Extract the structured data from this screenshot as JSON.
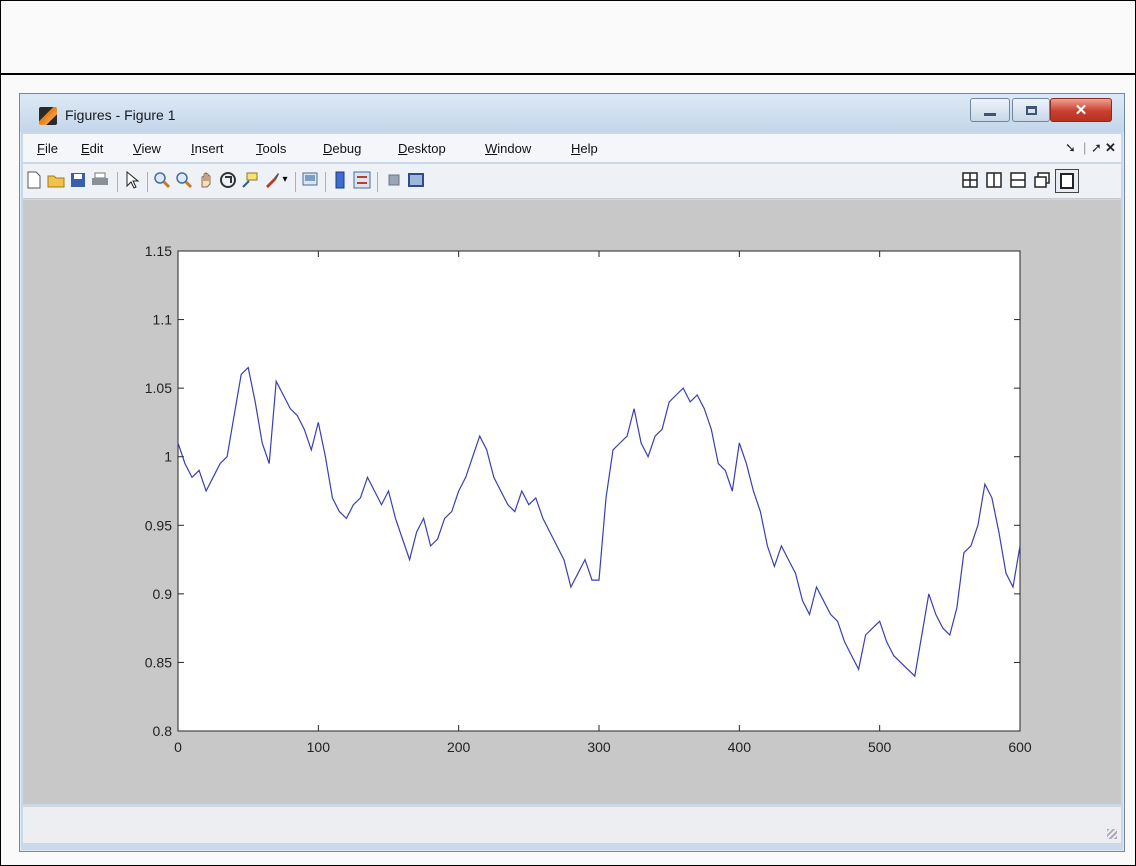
{
  "window": {
    "title": "Figures - Figure 1",
    "menu": [
      "File",
      "Edit",
      "View",
      "Insert",
      "Tools",
      "Debug",
      "Desktop",
      "Window",
      "Help"
    ]
  },
  "toolbar": {
    "icons": [
      "new-figure-icon",
      "open-file-icon",
      "save-icon",
      "print-icon",
      "edit-plot-icon",
      "zoom-in-icon",
      "zoom-out-icon",
      "pan-icon",
      "rotate-3d-icon",
      "data-cursor-icon",
      "brush-icon",
      "link-plot-icon",
      "colorbar-icon",
      "legend-icon",
      "hide-plot-tools-icon",
      "show-plot-tools-icon"
    ],
    "layout_icons": [
      "tile-icon",
      "left-right-icon",
      "top-bottom-icon",
      "float-icon",
      "maximize-icon"
    ]
  },
  "colors": {
    "line": "#3a3fb0",
    "figure_bg": "#c8c8c8",
    "axes_bg": "#ffffff"
  },
  "chart_data": {
    "type": "line",
    "xlim": [
      0,
      600
    ],
    "ylim": [
      0.8,
      1.15
    ],
    "xticks": [
      "0",
      "100",
      "200",
      "300",
      "400",
      "500",
      "600"
    ],
    "yticks": [
      "0.8",
      "0.85",
      "0.9",
      "0.95",
      "1",
      "1.05",
      "1.1",
      "1.15"
    ],
    "x": [
      0,
      5,
      10,
      15,
      20,
      25,
      30,
      35,
      40,
      45,
      50,
      55,
      60,
      65,
      70,
      75,
      80,
      85,
      90,
      95,
      100,
      105,
      110,
      115,
      120,
      125,
      130,
      135,
      140,
      145,
      150,
      155,
      160,
      165,
      170,
      175,
      180,
      185,
      190,
      195,
      200,
      205,
      210,
      215,
      220,
      225,
      230,
      235,
      240,
      245,
      250,
      255,
      260,
      265,
      270,
      275,
      280,
      285,
      290,
      295,
      300,
      305,
      310,
      315,
      320,
      325,
      330,
      335,
      340,
      345,
      350,
      355,
      360,
      365,
      370,
      375,
      380,
      385,
      390,
      395,
      400,
      405,
      410,
      415,
      420,
      425,
      430,
      435,
      440,
      445,
      450,
      455,
      460,
      465,
      470,
      475,
      480,
      485,
      490,
      495,
      500,
      505,
      510,
      515,
      520,
      525,
      530,
      535,
      540,
      545,
      550,
      555,
      560,
      565,
      570,
      575,
      580,
      585,
      590,
      595,
      600
    ],
    "y": [
      1.01,
      0.995,
      0.985,
      0.99,
      0.975,
      0.985,
      0.995,
      1.0,
      1.03,
      1.06,
      1.065,
      1.04,
      1.01,
      0.995,
      1.055,
      1.045,
      1.035,
      1.03,
      1.02,
      1.005,
      1.025,
      1.0,
      0.97,
      0.96,
      0.955,
      0.965,
      0.97,
      0.985,
      0.975,
      0.965,
      0.975,
      0.955,
      0.94,
      0.925,
      0.945,
      0.955,
      0.935,
      0.94,
      0.955,
      0.96,
      0.975,
      0.985,
      1.0,
      1.015,
      1.005,
      0.985,
      0.975,
      0.965,
      0.96,
      0.975,
      0.965,
      0.97,
      0.955,
      0.945,
      0.935,
      0.925,
      0.905,
      0.915,
      0.925,
      0.91,
      0.91,
      0.97,
      1.005,
      1.01,
      1.015,
      1.035,
      1.01,
      1.0,
      1.015,
      1.02,
      1.04,
      1.045,
      1.05,
      1.04,
      1.045,
      1.035,
      1.02,
      0.995,
      0.99,
      0.975,
      1.01,
      0.995,
      0.975,
      0.96,
      0.935,
      0.92,
      0.935,
      0.925,
      0.915,
      0.895,
      0.885,
      0.905,
      0.895,
      0.885,
      0.88,
      0.865,
      0.855,
      0.845,
      0.87,
      0.875,
      0.88,
      0.865,
      0.855,
      0.85,
      0.845,
      0.84,
      0.87,
      0.9,
      0.885,
      0.875,
      0.87,
      0.89,
      0.93,
      0.935,
      0.95,
      0.98,
      0.97,
      0.945,
      0.915,
      0.905,
      0.935
    ]
  }
}
